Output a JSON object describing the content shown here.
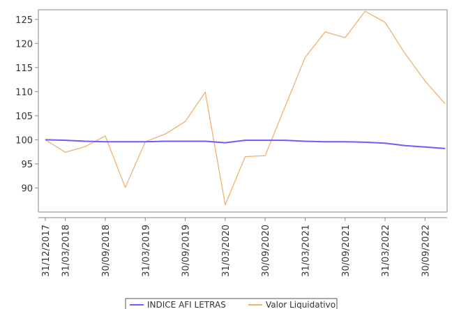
{
  "chart_data": {
    "type": "line",
    "title": "",
    "xlabel": "",
    "ylabel": "",
    "ylim": [
      85,
      127
    ],
    "yticks": [
      90,
      95,
      100,
      105,
      110,
      115,
      120,
      125
    ],
    "grid": false,
    "legend_position": "bottom-center",
    "x": [
      "31/12/2017",
      "31/03/2018",
      "30/06/2018",
      "30/09/2018",
      "31/12/2018",
      "31/03/2019",
      "30/06/2019",
      "30/09/2019",
      "31/12/2019",
      "31/03/2020",
      "30/06/2020",
      "30/09/2020",
      "31/12/2020",
      "31/03/2021",
      "30/06/2021",
      "30/09/2021",
      "31/12/2021",
      "31/03/2022",
      "30/06/2022",
      "30/09/2022",
      "31/12/2022"
    ],
    "x_tick_labels": [
      "31/12/2017",
      "31/03/2018",
      "30/09/2018",
      "31/03/2019",
      "30/09/2019",
      "31/03/2020",
      "30/09/2020",
      "31/03/2021",
      "30/09/2021",
      "31/03/2022",
      "30/09/2022"
    ],
    "series": [
      {
        "name": "INDICE AFI LETRAS",
        "color": "#6a5cff",
        "values": [
          100.0,
          99.9,
          99.7,
          99.6,
          99.6,
          99.6,
          99.7,
          99.7,
          99.7,
          99.4,
          99.9,
          99.9,
          99.9,
          99.7,
          99.6,
          99.6,
          99.5,
          99.3,
          98.8,
          98.5,
          98.2
        ]
      },
      {
        "name": "Valor Liquidativo",
        "color": "#f0b070",
        "values": [
          100.0,
          97.4,
          98.6,
          100.8,
          90.1,
          99.6,
          101.2,
          103.8,
          109.9,
          86.5,
          96.5,
          96.7,
          106.9,
          117.1,
          122.4,
          121.2,
          126.7,
          124.4,
          117.9,
          112.2,
          107.5
        ]
      }
    ]
  }
}
